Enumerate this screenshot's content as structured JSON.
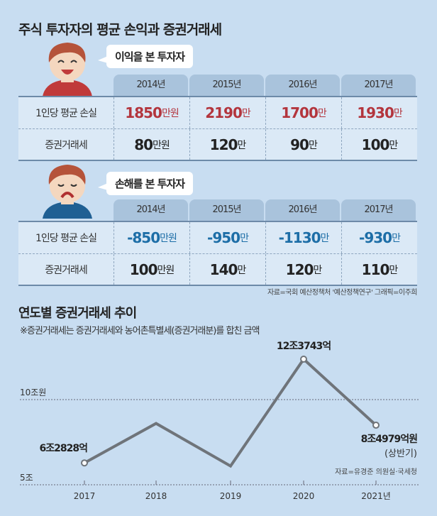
{
  "title": "주식 투자자의 평균 손익과 증권거래세",
  "profit_section": {
    "bubble": "이익을 본 투자자",
    "years": [
      "2014년",
      "2015년",
      "2016년",
      "2017년"
    ],
    "rows": [
      {
        "label": "1인당 평균 손실",
        "cells": [
          {
            "v": "1850",
            "u": "만원"
          },
          {
            "v": "2190",
            "u": "만"
          },
          {
            "v": "1700",
            "u": "만"
          },
          {
            "v": "1930",
            "u": "만"
          }
        ]
      },
      {
        "label": "증권거래세",
        "cells": [
          {
            "v": "80",
            "u": "만원"
          },
          {
            "v": "120",
            "u": "만"
          },
          {
            "v": "90",
            "u": "만"
          },
          {
            "v": "100",
            "u": "만"
          }
        ]
      }
    ]
  },
  "loss_section": {
    "bubble": "손해를 본 투자자",
    "years": [
      "2014년",
      "2015년",
      "2016년",
      "2017년"
    ],
    "rows": [
      {
        "label": "1인당 평균 손실",
        "cells": [
          {
            "v": "-850",
            "u": "만원"
          },
          {
            "v": "-950",
            "u": "만"
          },
          {
            "v": "-1130",
            "u": "만"
          },
          {
            "v": "-930",
            "u": "만"
          }
        ]
      },
      {
        "label": "증권거래세",
        "cells": [
          {
            "v": "100",
            "u": "만원"
          },
          {
            "v": "140",
            "u": "만"
          },
          {
            "v": "120",
            "u": "만"
          },
          {
            "v": "110",
            "u": "만"
          }
        ]
      }
    ]
  },
  "source1": "자료=국회 예산정책처 '예산정책연구'  그래픽=이주희",
  "colors": {
    "profit": "#b3353d",
    "loss": "#1d6ea7",
    "background": "#c8ddf1",
    "line": "#6f747a"
  },
  "chart_data": {
    "type": "line",
    "title": "연도별 증권거래세 추이",
    "subtitle": "※증권거래세는 증권거래세와 농어촌특별세(증권거래분)를 합친 금액",
    "x": [
      "2017",
      "2018",
      "2019",
      "2020",
      "2021년"
    ],
    "values": [
      6.2828,
      8.6,
      6.1,
      12.3743,
      8.4979
    ],
    "unit": "조원",
    "ylim": [
      5,
      13
    ],
    "yticks": [
      {
        "value": 5,
        "label": "5조"
      },
      {
        "value": 10,
        "label": "10조원"
      }
    ],
    "grid": "dotted at ticks",
    "annotations": [
      {
        "index": 0,
        "text": "6조2828억"
      },
      {
        "index": 3,
        "text": "12조3743억"
      },
      {
        "index": 4,
        "text": "8조4979억원",
        "sub": "(상반기)"
      }
    ],
    "source": "자료=유경준 의원실·국세청"
  }
}
